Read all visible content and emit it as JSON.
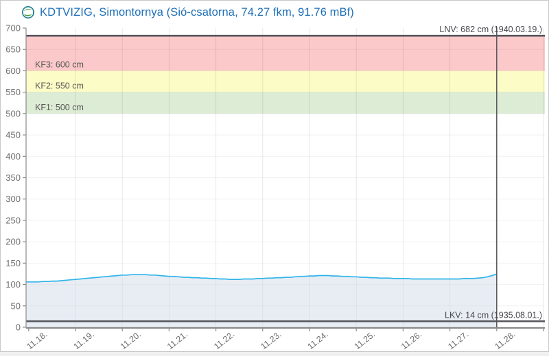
{
  "page": {
    "background": "#f0f0f0",
    "widget_border": "#c9c9c9"
  },
  "header": {
    "title": "KDTVIZIG, Simontornya (Sió-csatorna, 74.27 fkm, 91.76 mBf)",
    "title_color": "#1d6fb8",
    "icon": "vizugy-globe-icon",
    "icon_colors": {
      "ring": "#1c7f8f",
      "leaf": "#4aa23c"
    }
  },
  "chart_data": {
    "type": "line",
    "title": "KDTVIZIG, Simontornya (Sió-csatorna, 74.27 fkm, 91.76 mBf)",
    "ylim": [
      0,
      700
    ],
    "y_ticks": [
      0,
      50,
      100,
      150,
      200,
      250,
      300,
      350,
      400,
      450,
      500,
      550,
      600,
      650,
      700
    ],
    "x_tick_labels": [
      "11.18.",
      "11.19.",
      "11.20.",
      "11.21.",
      "11.22.",
      "11.23.",
      "11.24.",
      "11.25.",
      "11.26.",
      "11.27.",
      "11.28."
    ],
    "x_days_total": 11,
    "grid": true,
    "legend": "none",
    "series": [
      {
        "name": "water-level-cm",
        "color": "#2fb4e9",
        "fill_color": "rgba(205,214,230,0.45)",
        "x_start": -0.1,
        "x_step": 0.1,
        "values": [
          106,
          106,
          106,
          106,
          107,
          107,
          108,
          108,
          109,
          110,
          111,
          112,
          113,
          114,
          115,
          116,
          117,
          118,
          119,
          120,
          121,
          122,
          122,
          123,
          123,
          123,
          123,
          122,
          122,
          121,
          120,
          119,
          119,
          118,
          117,
          117,
          116,
          116,
          115,
          115,
          114,
          114,
          113,
          113,
          112,
          112,
          112,
          113,
          113,
          113,
          114,
          114,
          115,
          115,
          116,
          116,
          117,
          117,
          118,
          119,
          119,
          120,
          120,
          121,
          121,
          121,
          120,
          120,
          119,
          119,
          118,
          118,
          117,
          117,
          116,
          116,
          115,
          115,
          115,
          114,
          114,
          114,
          114,
          113,
          113,
          113,
          113,
          113,
          113,
          113,
          113,
          113,
          113,
          113,
          114,
          114,
          114,
          115,
          116,
          118,
          121,
          124
        ]
      }
    ],
    "bands": [
      {
        "label": "KF3: 600 cm",
        "from": 600,
        "to": 682,
        "color": "#fbc9c9"
      },
      {
        "label": "KF2: 550 cm",
        "from": 550,
        "to": 600,
        "color": "#fcfcc6"
      },
      {
        "label": "KF1: 500 cm",
        "from": 500,
        "to": 550,
        "color": "#ddecd5"
      }
    ],
    "reference_lines": [
      {
        "name": "LNV",
        "label": "LNV: 682 cm (1940.03.19.)",
        "value": 682
      },
      {
        "name": "LKV",
        "label": "LKV: 14 cm (1935.08.01.)",
        "value": 14
      }
    ],
    "current_time_day": 10.0,
    "colors": {
      "reference_line": "#54545c",
      "current_time_line": "#54545c",
      "axis": "#8a8a8a",
      "tick_label": "#6e6e6e",
      "band_label": "#555555",
      "ref_label": "#48484e",
      "grid_h": "rgba(0,0,0,0.055)",
      "grid_v": "rgba(0,0,0,0.095)"
    }
  }
}
